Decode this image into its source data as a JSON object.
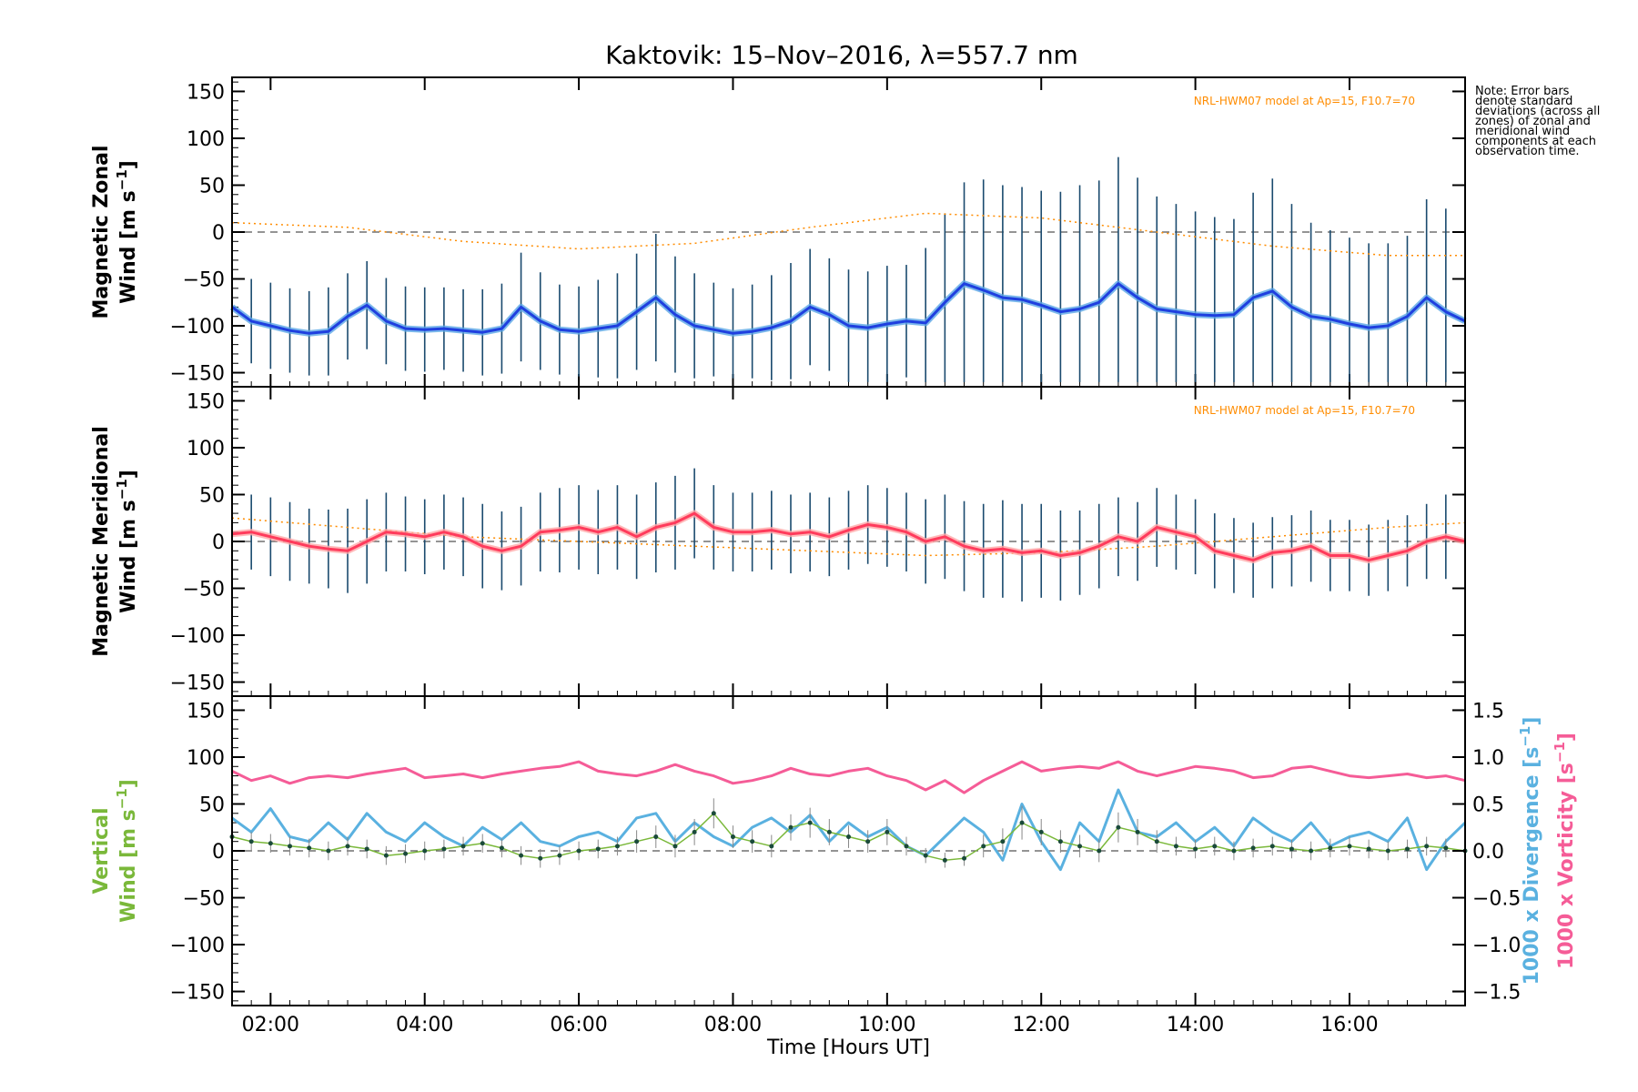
{
  "title": "Kaktovik: 15–Nov–2016, λ=557.7 nm",
  "note": "Note: Error bars denote standard deviations (across all zones) of zonal and meridional wind components at each observation time.",
  "colors": {
    "zonal": "#1f3fdf",
    "zonal_light": "#5aa6e6",
    "meridional": "#ff3b5c",
    "vertical": "#7ab83a",
    "divergence": "#5ab1e0",
    "vorticity": "#f55c97",
    "model": "#ff8c00",
    "errorbar": "#1a4a6e"
  },
  "chart_data": [
    {
      "type": "line",
      "panel": "zonal",
      "ylabel_line1": "Magnetic Zonal",
      "ylabel_line2": "Wind [m s",
      "ylabel_sup": "−1",
      "ylabel_close": "]",
      "model_label": "NRL-HWM07 model at Ap=15, F10.7=70",
      "ylim": [
        -165,
        165
      ],
      "yticks": [
        "150",
        "100",
        "50",
        "0",
        "−50",
        "−100",
        "−150"
      ],
      "ytick_values": [
        150,
        100,
        50,
        0,
        -50,
        -100,
        -150
      ],
      "series": [
        {
          "x": [
            1.5,
            1.75,
            2.0,
            2.25,
            2.5,
            2.75,
            3.0,
            3.25,
            3.5,
            3.75,
            4.0,
            4.25,
            4.5,
            4.75,
            5.0,
            5.25,
            5.5,
            5.75,
            6.0,
            6.25,
            6.5,
            6.75,
            7.0,
            7.25,
            7.5,
            7.75,
            8.0,
            8.25,
            8.5,
            8.75,
            9.0,
            9.25,
            9.5,
            9.75,
            10.0,
            10.25,
            10.5,
            10.75,
            11.0,
            11.25,
            11.5,
            11.75,
            12.0,
            12.25,
            12.5,
            12.75,
            13.0,
            13.25,
            13.5,
            13.75,
            14.0,
            14.25,
            14.5,
            14.75,
            15.0,
            15.25,
            15.5,
            15.75,
            16.0,
            16.25,
            16.5,
            16.75,
            17.0,
            17.25,
            17.5
          ],
          "values": [
            -80,
            -95,
            -100,
            -105,
            -108,
            -106,
            -90,
            -78,
            -95,
            -103,
            -104,
            -103,
            -105,
            -107,
            -103,
            -80,
            -95,
            -104,
            -106,
            -103,
            -100,
            -85,
            -70,
            -88,
            -100,
            -104,
            -108,
            -106,
            -102,
            -95,
            -80,
            -88,
            -100,
            -102,
            -98,
            -95,
            -97,
            -75,
            -55,
            -62,
            -70,
            -72,
            -78,
            -85,
            -82,
            -75,
            -55,
            -70,
            -82,
            -85,
            -88,
            -89,
            -88,
            -70,
            -63,
            -80,
            -90,
            -93,
            -98,
            -102,
            -100,
            -90,
            -70,
            -85,
            -95
          ],
          "errors": [
            42,
            45,
            46,
            45,
            45,
            47,
            46,
            47,
            46,
            45,
            45,
            44,
            44,
            46,
            48,
            58,
            52,
            48,
            48,
            52,
            56,
            62,
            68,
            62,
            56,
            50,
            48,
            50,
            56,
            62,
            62,
            60,
            60,
            60,
            62,
            60,
            80,
            95,
            108,
            118,
            120,
            120,
            122,
            128,
            132,
            130,
            135,
            128,
            120,
            115,
            110,
            105,
            102,
            112,
            120,
            110,
            100,
            95,
            92,
            90,
            88,
            86,
            105,
            110,
            110
          ]
        },
        {
          "name": "model",
          "x": [
            1.5,
            3,
            4.5,
            6,
            7.5,
            9,
            10.5,
            12,
            13.5,
            15,
            16.5,
            17.5
          ],
          "values": [
            10,
            5,
            -10,
            -18,
            -12,
            5,
            20,
            15,
            0,
            -15,
            -25,
            -25
          ]
        }
      ]
    },
    {
      "type": "line",
      "panel": "meridional",
      "ylabel_line1": "Magnetic Meridional",
      "ylabel_line2": "Wind [m s",
      "ylabel_sup": "−1",
      "ylabel_close": "]",
      "model_label": "NRL-HWM07 model at Ap=15, F10.7=70",
      "ylim": [
        -165,
        165
      ],
      "yticks": [
        "150",
        "100",
        "50",
        "0",
        "−50",
        "−100",
        "−150"
      ],
      "ytick_values": [
        150,
        100,
        50,
        0,
        -50,
        -100,
        -150
      ],
      "series": [
        {
          "x": [
            1.5,
            1.75,
            2.0,
            2.25,
            2.5,
            2.75,
            3.0,
            3.25,
            3.5,
            3.75,
            4.0,
            4.25,
            4.5,
            4.75,
            5.0,
            5.25,
            5.5,
            5.75,
            6.0,
            6.25,
            6.5,
            6.75,
            7.0,
            7.25,
            7.5,
            7.75,
            8.0,
            8.25,
            8.5,
            8.75,
            9.0,
            9.25,
            9.5,
            9.75,
            10.0,
            10.25,
            10.5,
            10.75,
            11.0,
            11.25,
            11.5,
            11.75,
            12.0,
            12.25,
            12.5,
            12.75,
            13.0,
            13.25,
            13.5,
            13.75,
            14.0,
            14.25,
            14.5,
            14.75,
            15.0,
            15.25,
            15.5,
            15.75,
            16.0,
            16.25,
            16.5,
            16.75,
            17.0,
            17.25,
            17.5
          ],
          "values": [
            8,
            10,
            5,
            0,
            -5,
            -8,
            -10,
            0,
            10,
            8,
            5,
            10,
            5,
            -5,
            -10,
            -5,
            10,
            12,
            15,
            10,
            15,
            5,
            15,
            20,
            30,
            15,
            10,
            10,
            12,
            8,
            10,
            5,
            12,
            18,
            15,
            10,
            0,
            5,
            -5,
            -10,
            -8,
            -12,
            -10,
            -15,
            -12,
            -5,
            5,
            0,
            15,
            10,
            5,
            -10,
            -15,
            -20,
            -12,
            -10,
            -5,
            -15,
            -15,
            -20,
            -15,
            -10,
            0,
            5,
            0
          ],
          "errors": [
            40,
            40,
            42,
            42,
            40,
            42,
            45,
            45,
            42,
            40,
            40,
            40,
            42,
            45,
            42,
            42,
            42,
            45,
            45,
            45,
            45,
            45,
            48,
            50,
            48,
            45,
            42,
            42,
            42,
            42,
            42,
            42,
            42,
            42,
            42,
            42,
            45,
            45,
            48,
            50,
            52,
            52,
            50,
            48,
            45,
            45,
            42,
            42,
            42,
            40,
            40,
            40,
            40,
            40,
            38,
            38,
            38,
            38,
            38,
            38,
            38,
            38,
            40,
            45,
            45
          ]
        },
        {
          "name": "model",
          "x": [
            1.5,
            3,
            4.5,
            6,
            7.5,
            9,
            10.5,
            12,
            13.5,
            15,
            16.5,
            17.5
          ],
          "values": [
            25,
            15,
            5,
            0,
            -5,
            -10,
            -15,
            -12,
            -5,
            5,
            15,
            20
          ]
        }
      ]
    },
    {
      "type": "line",
      "panel": "vertical",
      "ylabel_line1": "Vertical",
      "ylabel_line2": "Wind [m s",
      "ylabel_sup": "−1",
      "ylabel_close": "]",
      "ylim": [
        -165,
        165
      ],
      "yticks": [
        "150",
        "100",
        "50",
        "0",
        "−50",
        "−100",
        "−150"
      ],
      "ytick_values": [
        150,
        100,
        50,
        0,
        -50,
        -100,
        -150
      ],
      "y2label_div": "1000 x Divergence [s",
      "y2label_vor": "1000 x Vorticity [s",
      "y2label_sup": "−1",
      "y2label_close": "]",
      "y2lim": [
        -1.65,
        1.65
      ],
      "y2ticks": [
        "1.5",
        "1.0",
        "0.5",
        "0.0",
        "−0.5",
        "−1.0",
        "−1.5"
      ],
      "y2tick_values": [
        1.5,
        1.0,
        0.5,
        0.0,
        -0.5,
        -1.0,
        -1.5
      ],
      "series": [
        {
          "name": "vertical",
          "x": [
            1.5,
            1.75,
            2.0,
            2.25,
            2.5,
            2.75,
            3.0,
            3.25,
            3.5,
            3.75,
            4.0,
            4.25,
            4.5,
            4.75,
            5.0,
            5.25,
            5.5,
            5.75,
            6.0,
            6.25,
            6.5,
            6.75,
            7.0,
            7.25,
            7.5,
            7.75,
            8.0,
            8.25,
            8.5,
            8.75,
            9.0,
            9.25,
            9.5,
            9.75,
            10.0,
            10.25,
            10.5,
            10.75,
            11.0,
            11.25,
            11.5,
            11.75,
            12.0,
            12.25,
            12.5,
            12.75,
            13.0,
            13.25,
            13.5,
            13.75,
            14.0,
            14.25,
            14.5,
            14.75,
            15.0,
            15.25,
            15.5,
            15.75,
            16.0,
            16.25,
            16.5,
            16.75,
            17.0,
            17.25,
            17.5
          ],
          "values": [
            15,
            10,
            8,
            5,
            3,
            0,
            5,
            2,
            -5,
            -3,
            0,
            2,
            5,
            8,
            3,
            -5,
            -8,
            -5,
            0,
            2,
            5,
            10,
            15,
            5,
            20,
            40,
            15,
            10,
            5,
            25,
            30,
            20,
            15,
            10,
            20,
            5,
            -5,
            -10,
            -8,
            5,
            10,
            30,
            20,
            10,
            5,
            0,
            25,
            20,
            10,
            5,
            2,
            5,
            0,
            3,
            5,
            2,
            0,
            3,
            5,
            2,
            0,
            2,
            5,
            3,
            0
          ],
          "errors": [
            12,
            10,
            10,
            10,
            10,
            10,
            10,
            10,
            10,
            10,
            10,
            10,
            10,
            10,
            10,
            10,
            10,
            10,
            10,
            10,
            10,
            12,
            12,
            12,
            14,
            16,
            12,
            12,
            12,
            14,
            16,
            14,
            12,
            12,
            14,
            10,
            8,
            8,
            8,
            12,
            14,
            18,
            14,
            12,
            12,
            12,
            16,
            14,
            12,
            10,
            10,
            10,
            10,
            10,
            10,
            10,
            10,
            10,
            10,
            10,
            10,
            10,
            10,
            10,
            10
          ]
        },
        {
          "name": "divergence",
          "x": [
            1.5,
            1.75,
            2.0,
            2.25,
            2.5,
            2.75,
            3.0,
            3.25,
            3.5,
            3.75,
            4.0,
            4.25,
            4.5,
            4.75,
            5.0,
            5.25,
            5.5,
            5.75,
            6.0,
            6.25,
            6.5,
            6.75,
            7.0,
            7.25,
            7.5,
            7.75,
            8.0,
            8.25,
            8.5,
            8.75,
            9.0,
            9.25,
            9.5,
            9.75,
            10.0,
            10.25,
            10.5,
            10.75,
            11.0,
            11.25,
            11.5,
            11.75,
            12.0,
            12.25,
            12.5,
            12.75,
            13.0,
            13.25,
            13.5,
            13.75,
            14.0,
            14.25,
            14.5,
            14.75,
            15.0,
            15.25,
            15.5,
            15.75,
            16.0,
            16.25,
            16.5,
            16.75,
            17.0,
            17.25,
            17.5
          ],
          "values": [
            0.35,
            0.2,
            0.45,
            0.15,
            0.1,
            0.3,
            0.12,
            0.4,
            0.2,
            0.1,
            0.3,
            0.15,
            0.05,
            0.25,
            0.12,
            0.3,
            0.1,
            0.05,
            0.15,
            0.2,
            0.1,
            0.35,
            0.4,
            0.1,
            0.3,
            0.15,
            0.05,
            0.25,
            0.35,
            0.2,
            0.38,
            0.1,
            0.3,
            0.15,
            0.25,
            0.05,
            -0.05,
            0.15,
            0.35,
            0.2,
            -0.1,
            0.5,
            0.1,
            -0.2,
            0.3,
            0.1,
            0.65,
            0.2,
            0.15,
            0.3,
            0.1,
            0.25,
            0.05,
            0.35,
            0.2,
            0.1,
            0.3,
            0.05,
            0.15,
            0.2,
            0.1,
            0.35,
            -0.2,
            0.1,
            0.3
          ],
          "axis": "right"
        },
        {
          "name": "vorticity",
          "x": [
            1.5,
            1.75,
            2.0,
            2.25,
            2.5,
            2.75,
            3.0,
            3.25,
            3.5,
            3.75,
            4.0,
            4.25,
            4.5,
            4.75,
            5.0,
            5.25,
            5.5,
            5.75,
            6.0,
            6.25,
            6.5,
            6.75,
            7.0,
            7.25,
            7.5,
            7.75,
            8.0,
            8.25,
            8.5,
            8.75,
            9.0,
            9.25,
            9.5,
            9.75,
            10.0,
            10.25,
            10.5,
            10.75,
            11.0,
            11.25,
            11.5,
            11.75,
            12.0,
            12.25,
            12.5,
            12.75,
            13.0,
            13.25,
            13.5,
            13.75,
            14.0,
            14.25,
            14.5,
            14.75,
            15.0,
            15.25,
            15.5,
            15.75,
            16.0,
            16.25,
            16.5,
            16.75,
            17.0,
            17.25,
            17.5
          ],
          "values": [
            0.85,
            0.75,
            0.8,
            0.72,
            0.78,
            0.8,
            0.78,
            0.82,
            0.85,
            0.88,
            0.78,
            0.8,
            0.82,
            0.78,
            0.82,
            0.85,
            0.88,
            0.9,
            0.95,
            0.85,
            0.82,
            0.8,
            0.85,
            0.92,
            0.85,
            0.8,
            0.72,
            0.75,
            0.8,
            0.88,
            0.82,
            0.8,
            0.85,
            0.88,
            0.8,
            0.75,
            0.65,
            0.75,
            0.62,
            0.75,
            0.85,
            0.95,
            0.85,
            0.88,
            0.9,
            0.88,
            0.95,
            0.85,
            0.8,
            0.85,
            0.9,
            0.88,
            0.85,
            0.78,
            0.8,
            0.88,
            0.9,
            0.85,
            0.8,
            0.78,
            0.8,
            0.82,
            0.78,
            0.8,
            0.75
          ],
          "axis": "right"
        }
      ]
    }
  ],
  "xaxis": {
    "label": "Time [Hours UT]",
    "xlim": [
      1.5,
      17.5
    ],
    "ticks": [
      "02:00",
      "04:00",
      "06:00",
      "08:00",
      "10:00",
      "12:00",
      "14:00",
      "16:00"
    ],
    "tick_values": [
      2,
      4,
      6,
      8,
      10,
      12,
      14,
      16
    ]
  }
}
